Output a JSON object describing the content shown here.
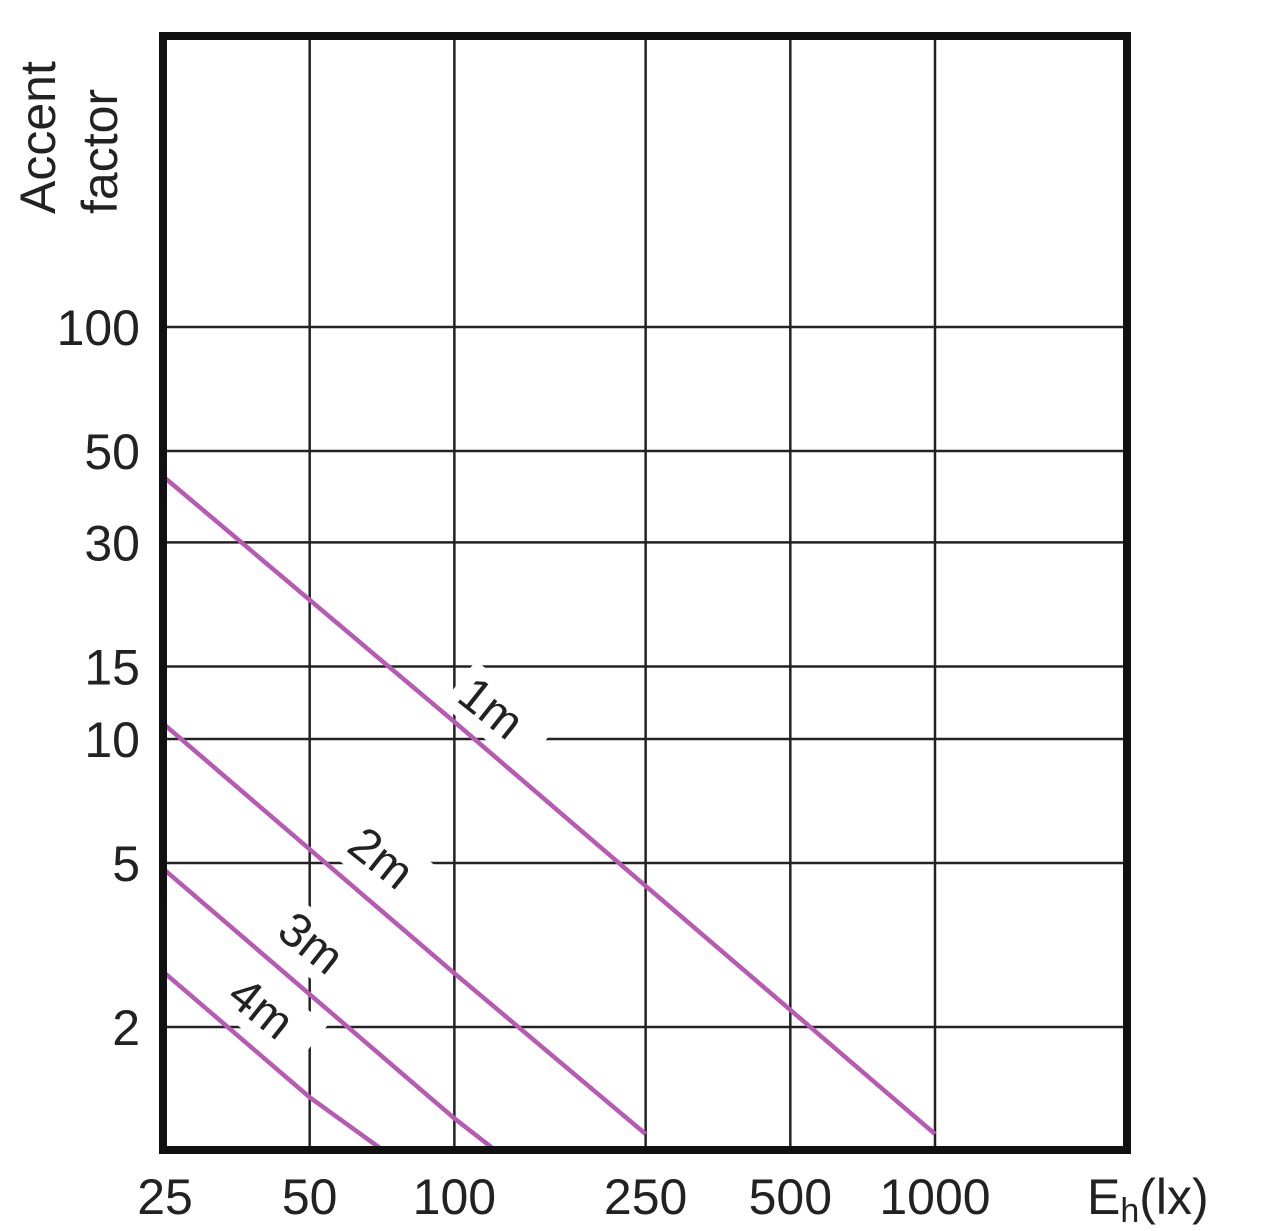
{
  "chart_data": {
    "type": "line",
    "ylabel": [
      "Accent",
      "factor"
    ],
    "xlabel_main": "E",
    "xlabel_sub": "h",
    "xlabel_unit": "(lx)",
    "x_ticks": [
      "25",
      "50",
      "100",
      "250",
      "500",
      "1000"
    ],
    "y_ticks": [
      "100",
      "50",
      "30",
      "15",
      "10",
      "5",
      "2"
    ],
    "grid": true,
    "colors": {
      "series": "#b65bb2",
      "grid": "#222222",
      "frame": "#111111"
    },
    "series": [
      {
        "name": "1m",
        "points": [
          [
            25,
            43
          ],
          [
            100,
            11
          ],
          [
            250,
            4.4
          ],
          [
            500,
            2.2
          ],
          [
            1000,
            1.1
          ]
        ]
      },
      {
        "name": "2m",
        "points": [
          [
            25,
            10.8
          ],
          [
            50,
            5.4
          ],
          [
            100,
            2.7
          ],
          [
            250,
            1.1
          ]
        ]
      },
      {
        "name": "3m",
        "points": [
          [
            25,
            4.8
          ],
          [
            100,
            1.2
          ],
          [
            120,
            1
          ]
        ]
      },
      {
        "name": "4m",
        "points": [
          [
            25,
            2.7
          ],
          [
            50,
            1.35
          ],
          [
            70,
            1
          ]
        ]
      }
    ]
  }
}
